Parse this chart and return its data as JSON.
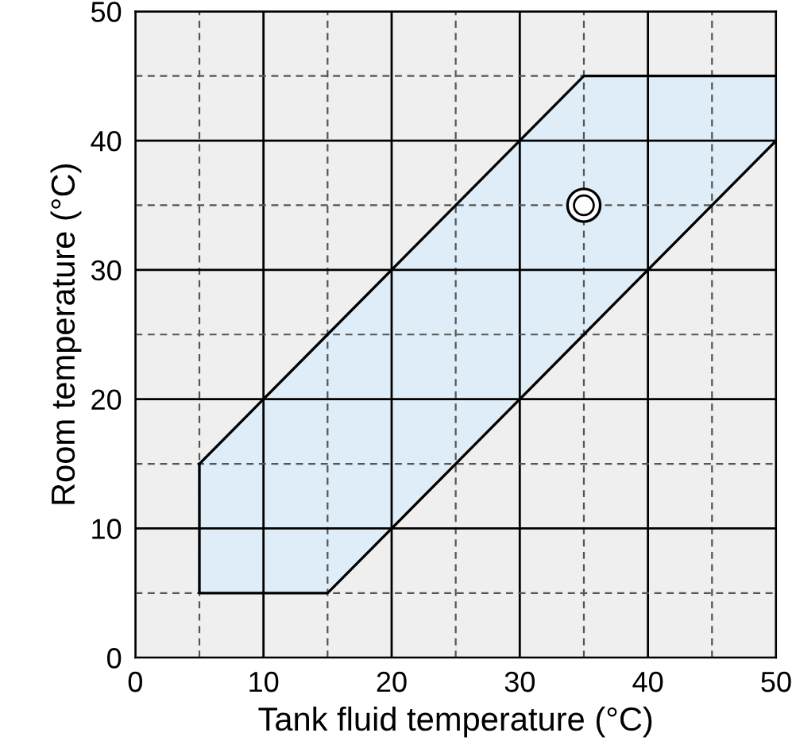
{
  "chart_data": {
    "type": "area",
    "xlabel": "Tank fluid temperature (°C)",
    "ylabel": "Room temperature (°C)",
    "xlim": [
      0,
      50
    ],
    "ylim": [
      0,
      50
    ],
    "xticks": [
      0,
      {
        "value": 5,
        "label": null
      },
      10,
      {
        "value": 15,
        "label": null
      },
      20,
      {
        "value": 25,
        "label": null
      },
      30,
      {
        "value": 35,
        "label": null
      },
      40,
      {
        "value": 45,
        "label": null
      },
      50
    ],
    "yticks": [
      0,
      {
        "value": 5,
        "label": null
      },
      10,
      {
        "value": 15,
        "label": null
      },
      20,
      {
        "value": 25,
        "label": null
      },
      30,
      {
        "value": 35,
        "label": null
      },
      40,
      {
        "value": 45,
        "label": null
      },
      50
    ],
    "grid": true,
    "series": [
      {
        "color": "#deedf7",
        "x": [
          5,
          15,
          35,
          50
        ],
        "values": [
          15,
          25,
          45,
          45
        ]
      },
      {
        "color": "#efefef",
        "x": [
          5,
          5,
          15,
          35,
          50
        ],
        "values": [
          15,
          5,
          5,
          25,
          40
        ]
      },
      {
        "type": "scatter",
        "color": "#000000",
        "marker": "circle",
        "x": [
          35
        ],
        "values": [
          35
        ]
      }
    ]
  }
}
